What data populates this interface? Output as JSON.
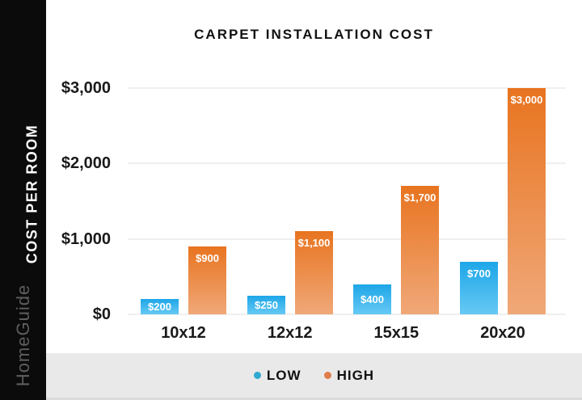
{
  "branding": {
    "watermark": "HomeGuide"
  },
  "chart_data": {
    "type": "bar",
    "title": "CARPET INSTALLATION COST",
    "ylabel": "COST PER ROOM",
    "xlabel": "",
    "categories": [
      "10x12",
      "12x12",
      "15x15",
      "20x20"
    ],
    "series": [
      {
        "name": "LOW",
        "values": [
          200,
          250,
          400,
          700
        ],
        "labels": [
          "$200",
          "$250",
          "$400",
          "$700"
        ],
        "color_top": "#1ea6e8",
        "color_bottom": "#66c9f4"
      },
      {
        "name": "HIGH",
        "values": [
          900,
          1100,
          1700,
          3000
        ],
        "labels": [
          "$900",
          "$1,100",
          "$1,700",
          "$3,000"
        ],
        "color_top": "#e87420",
        "color_bottom": "#f0a878"
      }
    ],
    "ylim": [
      0,
      3000
    ],
    "yticks": [
      {
        "value": 0,
        "label": "$0"
      },
      {
        "value": 1000,
        "label": "$1,000"
      },
      {
        "value": 2000,
        "label": "$2,000"
      },
      {
        "value": 3000,
        "label": "$3,000"
      }
    ],
    "grid": true,
    "legend_position": "bottom"
  },
  "legend": {
    "items": [
      {
        "label": "LOW",
        "color": "#2fa9cf"
      },
      {
        "label": "HIGH",
        "color": "#e07c4a"
      }
    ]
  }
}
